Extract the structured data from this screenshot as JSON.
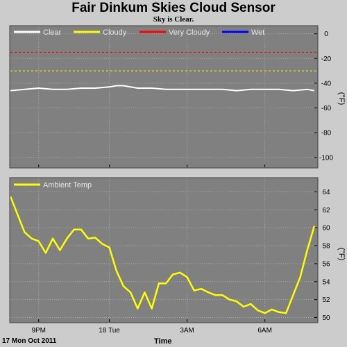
{
  "header": {
    "title": "Fair Dinkum Skies Cloud Sensor",
    "subtitle": "Sky is Clear."
  },
  "footer": {
    "date_label": "17 Mon Oct 2011",
    "time_label": "Time"
  },
  "colors": {
    "background": "#cccccc",
    "plot_bg": "#808080",
    "clear": "#ffffff",
    "cloudy": "#ffff00",
    "very_cloudy": "#ff0000",
    "wet": "#0000ff",
    "ambient": "#ffff00"
  },
  "chart_data": [
    {
      "type": "line",
      "ylabel": "(°F)",
      "ylim": [
        -108,
        6
      ],
      "xlim": [
        0,
        21.7
      ],
      "x_ticks": [
        2,
        7,
        12.5,
        18
      ],
      "x_tick_labels": [
        "9PM",
        "18 Tue",
        "3AM",
        "6AM"
      ],
      "y_ticks": [
        0,
        -20,
        -40,
        -60,
        -80,
        -100
      ],
      "y_tick_labels": [
        "0",
        "-20",
        "-40",
        "-60",
        "-80",
        "-100"
      ],
      "grid": true,
      "legend": "top",
      "series": [
        {
          "name": "Clear",
          "color": "#ffffff",
          "x": [
            0,
            1,
            2,
            3,
            4,
            5,
            6,
            7,
            7.5,
            8,
            9,
            10,
            11,
            12,
            13,
            14,
            15,
            16,
            17,
            18,
            19,
            20,
            21,
            21.5
          ],
          "y": [
            -46,
            -45,
            -44,
            -45,
            -45,
            -44,
            -44,
            -43,
            -42,
            -42,
            -44,
            -44,
            -45,
            -45,
            -45,
            -45,
            -45,
            -46,
            -45,
            -45,
            -45,
            -46,
            -45,
            -46
          ]
        },
        {
          "name": "Cloudy",
          "color": "#ffff00",
          "x": [
            0,
            21.7
          ],
          "y": [
            -30,
            -30
          ],
          "dashed": true
        },
        {
          "name": "Very Cloudy",
          "color": "#ff0000",
          "x": [
            0,
            21.7
          ],
          "y": [
            -15,
            -15
          ],
          "dashed": true
        },
        {
          "name": "Wet",
          "color": "#0000ff",
          "x": [],
          "y": []
        }
      ]
    },
    {
      "type": "line",
      "ylabel": "(°F)",
      "ylim": [
        49.5,
        65.5
      ],
      "xlim": [
        0,
        21.7
      ],
      "x_ticks": [
        2,
        7,
        12.5,
        18
      ],
      "x_tick_labels": [
        "9PM",
        "18 Tue",
        "3AM",
        "6AM"
      ],
      "y_ticks": [
        50,
        52,
        54,
        56,
        58,
        60,
        62,
        64
      ],
      "y_tick_labels": [
        "50",
        "52",
        "54",
        "56",
        "58",
        "60",
        "62",
        "64"
      ],
      "grid": true,
      "legend": "top-left",
      "series": [
        {
          "name": "Ambient Temp",
          "color": "#ffff00",
          "x": [
            0,
            0.5,
            1,
            1.5,
            2,
            2.5,
            3,
            3.5,
            4,
            4.5,
            5,
            5.5,
            6,
            6.5,
            7,
            7.5,
            8,
            8.5,
            9,
            9.5,
            10,
            10.5,
            11,
            11.5,
            12,
            12.5,
            13,
            13.5,
            14,
            14.5,
            15,
            15.5,
            16,
            16.5,
            17,
            17.5,
            18,
            18.5,
            19,
            19.5,
            20,
            20.5,
            21,
            21.5
          ],
          "y": [
            63.5,
            61.5,
            59.5,
            58.8,
            58.5,
            57.2,
            58.8,
            57.5,
            58.8,
            59.8,
            59.8,
            58.8,
            58.9,
            58.2,
            57.8,
            55.2,
            53.5,
            52.8,
            51.0,
            52.8,
            51.0,
            53.8,
            53.8,
            54.8,
            55.0,
            54.5,
            53.0,
            53.2,
            52.8,
            52.5,
            52.5,
            52.0,
            51.8,
            51.2,
            51.5,
            50.8,
            50.5,
            50.9,
            50.6,
            50.5,
            52.5,
            54.5,
            57.5,
            60.2
          ]
        }
      ]
    }
  ]
}
